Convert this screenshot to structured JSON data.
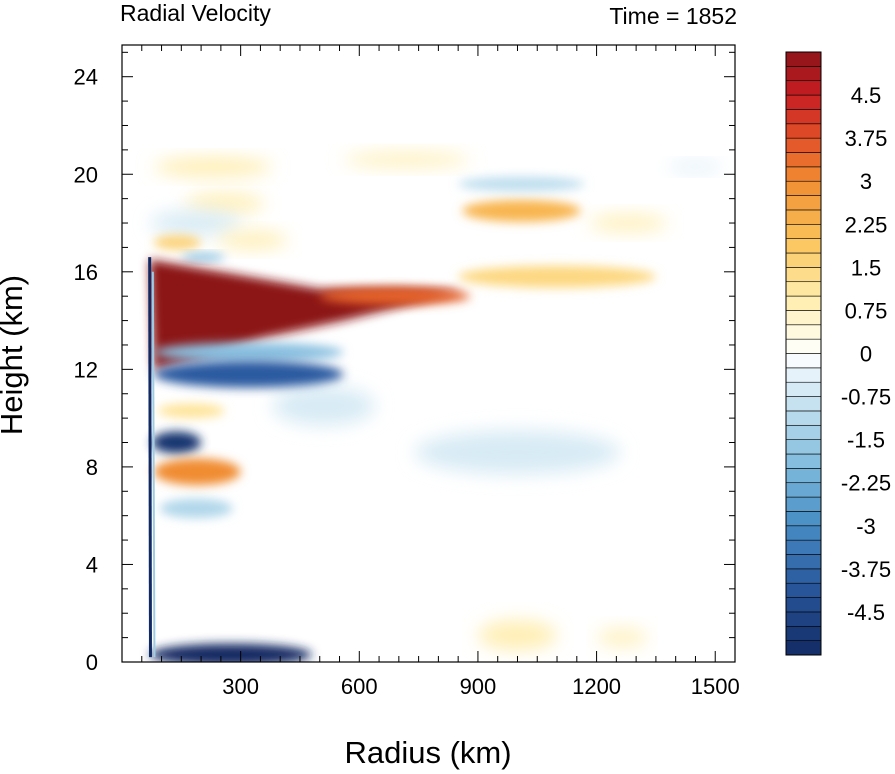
{
  "chart_data": {
    "type": "heatmap",
    "title_left": "Radial Velocity",
    "title_right": "Time = 1852",
    "xlabel": "Radius (km)",
    "ylabel": "Height (km)",
    "xlim": [
      0,
      1550
    ],
    "ylim": [
      0,
      25.3
    ],
    "x_ticks": [
      300,
      600,
      900,
      1200,
      1500
    ],
    "x_tick_labels": [
      "300",
      "600",
      "900",
      "1200",
      "1500"
    ],
    "y_ticks": [
      0,
      4,
      8,
      12,
      16,
      20,
      24
    ],
    "y_tick_labels": [
      "0",
      "4",
      "8",
      "12",
      "16",
      "20",
      "24"
    ],
    "colorbar": {
      "levels": [
        -5.25,
        -5.0,
        -4.75,
        -4.5,
        -4.25,
        -4.0,
        -3.75,
        -3.5,
        -3.25,
        -3.0,
        -2.75,
        -2.5,
        -2.25,
        -2.0,
        -1.75,
        -1.5,
        -1.25,
        -1.0,
        -0.75,
        -0.5,
        -0.25,
        0,
        0.25,
        0.5,
        0.75,
        1.0,
        1.25,
        1.5,
        1.75,
        2.0,
        2.25,
        2.5,
        2.75,
        3.0,
        3.25,
        3.5,
        3.75,
        4.0,
        4.25,
        4.5,
        4.75,
        5.0,
        5.25
      ],
      "tick_values": [
        -4.5,
        -3.75,
        -3,
        -2.25,
        -1.5,
        -0.75,
        0,
        0.75,
        1.5,
        2.25,
        3,
        3.75,
        4.5
      ],
      "tick_labels": [
        "-4.5",
        "-3.75",
        "-3",
        "-2.25",
        "-1.5",
        "-0.75",
        "0",
        "0.75",
        "1.5",
        "2.25",
        "3",
        "3.75",
        "4.5"
      ]
    },
    "features": [
      {
        "kind": "outflow-core",
        "value": 5.25,
        "x0": 70,
        "x1": 860,
        "y_top": 16.5,
        "y_bottom": 12.0
      },
      {
        "kind": "upper-inflow",
        "value": -4.0,
        "x0": 80,
        "x1": 560,
        "y_center": 11.8
      },
      {
        "kind": "inflow-eye",
        "value": -5.0,
        "x0": 75,
        "x1": 200,
        "y_center": 9.0
      },
      {
        "kind": "outflow-band",
        "value": 3.0,
        "x0": 80,
        "x1": 300,
        "y_center": 7.8
      },
      {
        "kind": "boundary-inflow",
        "value": -5.25,
        "x0": 70,
        "x1": 480,
        "y_center": 0.3
      },
      {
        "kind": "upper-outflow",
        "value": 1.5,
        "x0": 850,
        "x1": 1350,
        "y_center": 15.8
      },
      {
        "kind": "upper-outflow",
        "value": 2.25,
        "x0": 860,
        "x1": 1160,
        "y_center": 18.5
      },
      {
        "kind": "upper-inflow",
        "value": -1.0,
        "x0": 850,
        "x1": 1170,
        "y_center": 19.6
      }
    ]
  }
}
